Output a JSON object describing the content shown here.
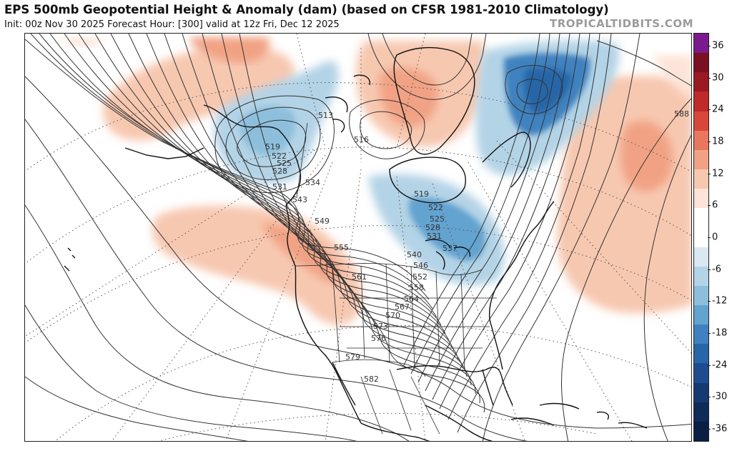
{
  "header": {
    "title": "EPS 500mb Geopotential Height & Anomaly (dam) (based on CFSR 1981-2010 Climatology)",
    "subtitle": "Init: 00z Nov 30 2025   Forecast Hour: [300]   valid at 12z Fri, Dec 12 2025",
    "brand": "TROPICALTIDBITS.COM"
  },
  "colorbar": {
    "ticks": [
      "36",
      "30",
      "24",
      "18",
      "12",
      "6",
      "0",
      "-6",
      "-12",
      "-18",
      "-24",
      "-30",
      "-36"
    ],
    "colors": [
      "#7b1a8c",
      "#7a1020",
      "#9a1a22",
      "#bf2a2a",
      "#d8473a",
      "#e8775e",
      "#f1a284",
      "#f7c8b0",
      "#fde4d8",
      "#ffffff",
      "#ffffff",
      "#d9e8f1",
      "#b3d3e6",
      "#8dbfdc",
      "#64a3d0",
      "#3f82bf",
      "#2866a8",
      "#1d4d8f",
      "#153a72",
      "#0f2b58",
      "#0a1f44"
    ]
  },
  "contours": {
    "labels": [
      "513",
      "516",
      "519",
      "522",
      "525",
      "528",
      "531",
      "534",
      "537",
      "540",
      "543",
      "546",
      "549",
      "552",
      "555",
      "558",
      "561",
      "564",
      "567",
      "570",
      "573",
      "576",
      "579",
      "582",
      "588",
      "519",
      "522",
      "525",
      "528",
      "531"
    ]
  },
  "colors": {
    "positive": "#f2a384",
    "positive_strong": "#e67c5c",
    "negative": "#8fc0dd",
    "negative_strong": "#3f82bf",
    "contour": "#333333",
    "coast": "#111111"
  }
}
